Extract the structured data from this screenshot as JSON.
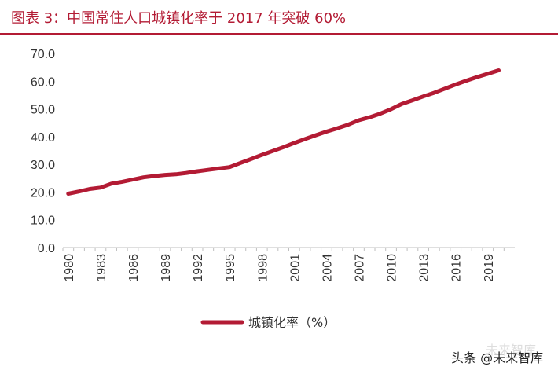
{
  "title": "图表 3：中国常住人口城镇化率于 2017 年突破 60%",
  "watermark": "头条 @未来智库",
  "watermark_bg": "未来智库",
  "colors": {
    "accent": "#b31b34",
    "series": "#b31b34",
    "text": "#333333"
  },
  "chart_data": {
    "type": "line",
    "title": "图表 3：中国常住人口城镇化率于 2017 年突破 60%",
    "xlabel": "",
    "ylabel": "",
    "ylim": [
      0,
      70
    ],
    "yticks": [
      "0.0",
      "10.0",
      "20.0",
      "30.0",
      "40.0",
      "50.0",
      "60.0",
      "70.0"
    ],
    "xticks": [
      "1980",
      "1983",
      "1986",
      "1989",
      "1992",
      "1995",
      "1998",
      "2001",
      "2004",
      "2007",
      "2010",
      "2013",
      "2016",
      "2019"
    ],
    "grid": false,
    "legend": "bottom-center",
    "x": [
      1980,
      1981,
      1982,
      1983,
      1984,
      1985,
      1986,
      1987,
      1988,
      1989,
      1990,
      1991,
      1992,
      1993,
      1994,
      1995,
      1996,
      1997,
      1998,
      1999,
      2000,
      2001,
      2002,
      2003,
      2004,
      2005,
      2006,
      2007,
      2008,
      2009,
      2010,
      2011,
      2012,
      2013,
      2014,
      2015,
      2016,
      2017,
      2018,
      2019,
      2020
    ],
    "series": [
      {
        "name": "城镇化率（%）",
        "values": [
          19.4,
          20.2,
          21.1,
          21.6,
          23.0,
          23.7,
          24.5,
          25.3,
          25.8,
          26.2,
          26.4,
          26.9,
          27.5,
          28.0,
          28.5,
          29.0,
          30.5,
          31.9,
          33.4,
          34.8,
          36.2,
          37.7,
          39.1,
          40.5,
          41.8,
          43.0,
          44.3,
          45.9,
          47.0,
          48.3,
          49.9,
          51.8,
          53.1,
          54.5,
          55.8,
          57.3,
          58.8,
          60.2,
          61.5,
          62.7,
          63.9
        ]
      }
    ]
  }
}
